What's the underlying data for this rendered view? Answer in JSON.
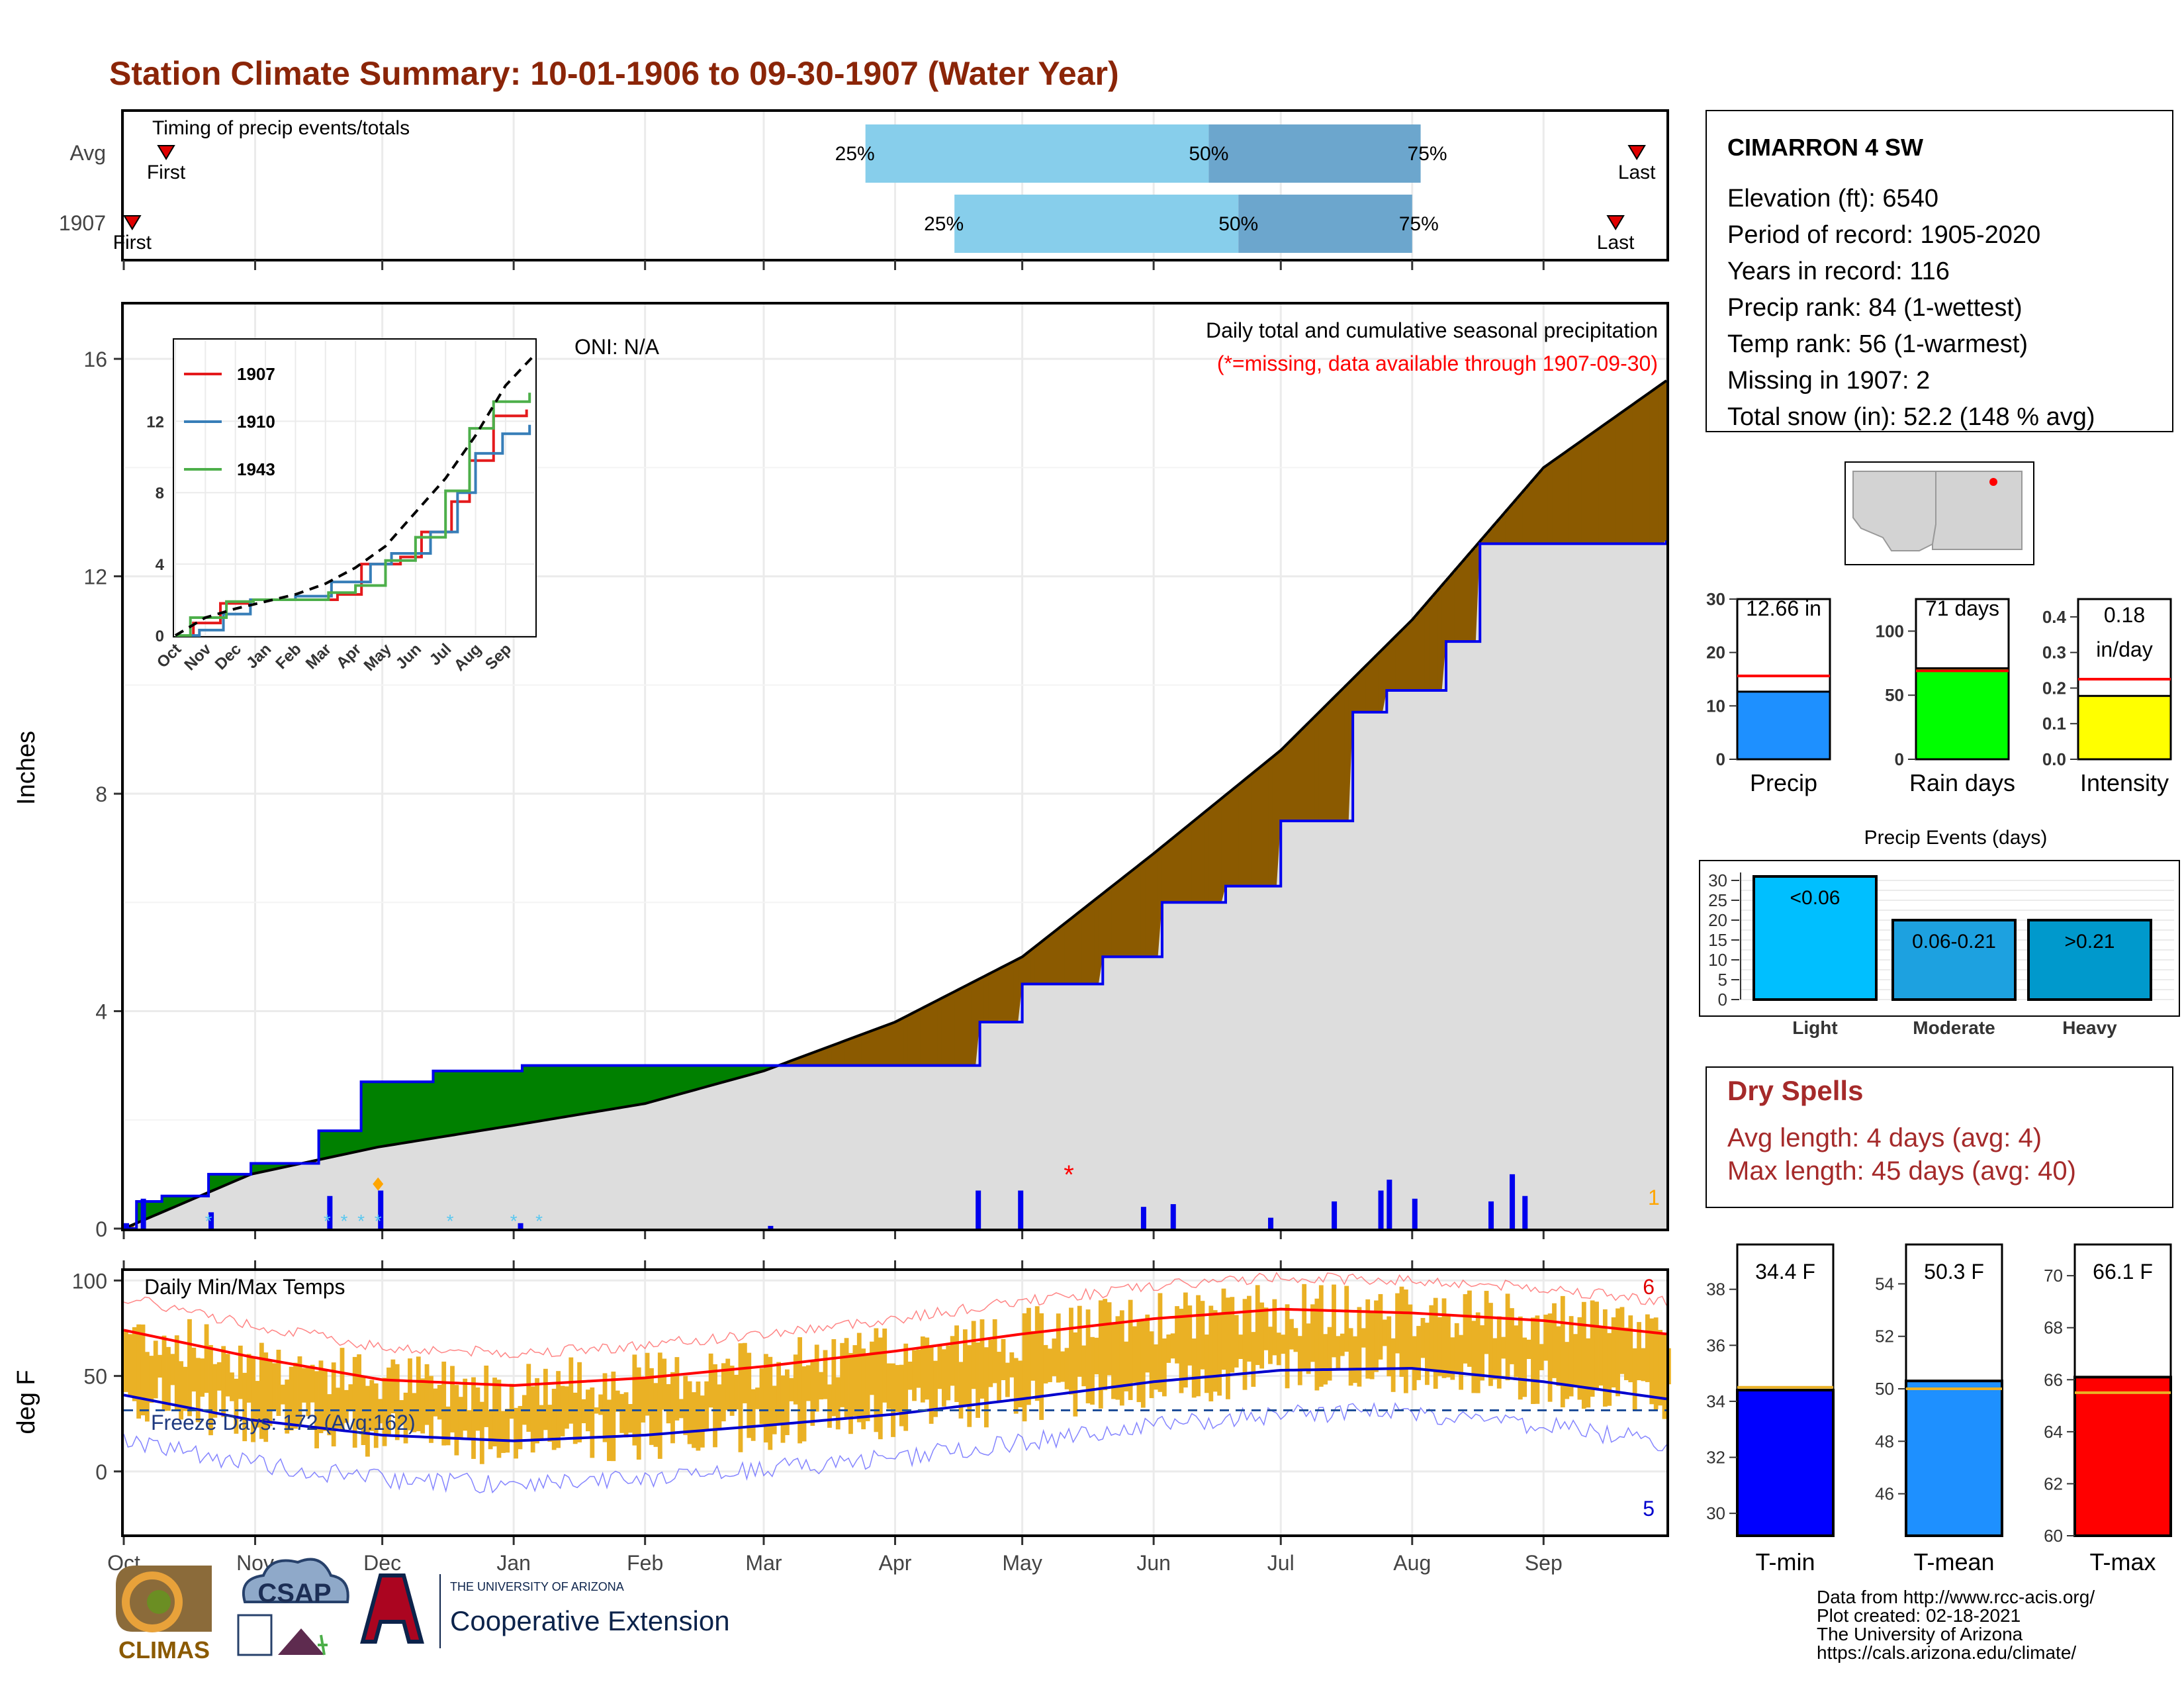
{
  "colors": {
    "title": "#8B2508",
    "cumulative_fill": "#8B5A00",
    "cumulative_gap_green": "#008000",
    "avg_area": "#DDDDDD",
    "precip_bar": "#0000EE",
    "timing_light": "#87CEEB",
    "timing_dark": "#6CA6CD",
    "temp_bar": "#EAB125",
    "tmax_line": "#FF0000",
    "tmin_line": "#0000CD",
    "dry_spell_text": "#A52A2A",
    "precip_box": "#1E90FF",
    "raindays_box": "#00FF00",
    "intensity_box": "#FFFF00",
    "events_light": "#00BFFF",
    "events_moderate": "#1DA1E0",
    "events_heavy": "#0099CC",
    "tmin_box": "#0000FF",
    "tmean_box": "#1E90FF",
    "tmax_box": "#FF0000",
    "inset_1907": "#E41A1C",
    "inset_1910": "#377EB8",
    "inset_1943": "#4DAF4A"
  },
  "header": {
    "title": "Station Climate Summary: 10-01-1906 to 09-30-1907 (Water Year)"
  },
  "month_labels": [
    "Oct",
    "Nov",
    "Dec",
    "Jan",
    "Feb",
    "Mar",
    "Apr",
    "May",
    "Jun",
    "Jul",
    "Aug",
    "Sep"
  ],
  "timing_panel": {
    "title": "Timing of precip events/totals",
    "rows": [
      {
        "label": "Avg",
        "first_label": "First",
        "last_label": "Last",
        "first_day": 10,
        "last_day": 357,
        "p25_day": 175,
        "p50_day": 256,
        "p75_day": 306,
        "p25_label": "25%",
        "p50_label": "50%",
        "p75_label": "75%"
      },
      {
        "label": "1907",
        "first_label": "First",
        "last_label": "Last",
        "first_day": 2,
        "last_day": 352,
        "p25_day": 196,
        "p50_day": 263,
        "p75_day": 304,
        "p25_label": "25%",
        "p50_label": "50%",
        "p75_label": "75%"
      }
    ]
  },
  "precip_panel": {
    "ylabel": "Inches",
    "subtitle": "Daily total and cumulative seasonal precipitation",
    "missing_note": "(*=missing, data available through 1907-09-30)",
    "oni": "ONI: N/A",
    "corner_count": "1",
    "ylim": [
      0,
      17
    ],
    "yticks": [
      0,
      4,
      8,
      12,
      16
    ]
  },
  "inset": {
    "xticks": [
      "Oct",
      "Nov",
      "Dec",
      "Jan",
      "Feb",
      "Mar",
      "Apr",
      "May",
      "Jun",
      "Jul",
      "Aug",
      "Sep"
    ],
    "yticks": [
      0,
      4,
      8,
      12
    ],
    "legend": [
      "1907",
      "1910",
      "1943"
    ]
  },
  "temp_panel": {
    "ylabel": "deg F",
    "title": "Daily Min/Max Temps",
    "freeze_text": "Freeze Days: 172 (Avg:162)",
    "count_high": "6",
    "count_low": "5",
    "yticks": [
      0,
      50,
      100
    ],
    "ylim": [
      -33,
      105
    ]
  },
  "station": {
    "name": "CIMARRON 4 SW",
    "lines": [
      "Elevation (ft): 6540",
      "Period of record: 1905-2020",
      "Years in record: 116",
      "Precip rank: 84 (1-wettest)",
      "Temp rank: 56 (1-warmest)",
      "Missing in 1907: 2",
      "Total snow (in): 52.2 (148 % avg)"
    ]
  },
  "summary_bars": [
    {
      "label": "Precip",
      "value_text": "12.66 in",
      "value": 12.66,
      "avg": 15.6,
      "ymax": 30,
      "yticks": [
        0,
        10,
        20,
        30
      ]
    },
    {
      "label": "Rain days",
      "value_text": "71 days",
      "value": 71,
      "avg": 69,
      "ymax": 125,
      "yticks": [
        0,
        50,
        100
      ]
    },
    {
      "label": "Intensity",
      "value_text": "0.18",
      "value_text2": "in/day",
      "value": 0.178,
      "avg": 0.225,
      "ymax": 0.45,
      "yticks": [
        0.0,
        0.1,
        0.2,
        0.3,
        0.4
      ]
    }
  ],
  "events": {
    "title": "Precip Events (days)",
    "yticks": [
      0,
      5,
      10,
      15,
      20,
      25,
      30
    ],
    "categories": [
      "Light",
      "Moderate",
      "Heavy"
    ],
    "bin_labels": [
      "<0.06",
      "0.06-0.21",
      ">0.21"
    ],
    "values": [
      31,
      20,
      20
    ]
  },
  "dry_spells": {
    "title": "Dry Spells",
    "avg_line": "Avg length: 4 days (avg: 4)",
    "max_line": "Max length: 45 days (avg: 40)"
  },
  "temp_summary": [
    {
      "label": "T-min",
      "value_text": "34.4 F",
      "value": 34.4,
      "avg": 34.5,
      "ylim": [
        29.2,
        39.6
      ],
      "yticks": [
        30,
        32,
        34,
        36,
        38
      ]
    },
    {
      "label": "T-mean",
      "value_text": "50.3 F",
      "value": 50.3,
      "avg": 50.0,
      "ylim": [
        44.4,
        55.5
      ],
      "yticks": [
        46,
        48,
        50,
        52,
        54
      ]
    },
    {
      "label": "T-max",
      "value_text": "66.1 F",
      "value": 66.1,
      "avg": 65.5,
      "ylim": [
        60,
        71.2
      ],
      "yticks": [
        60,
        62,
        64,
        66,
        68,
        70
      ]
    }
  ],
  "credits": [
    "Data from http://www.rcc-acis.org/",
    "Plot created: 02-18-2021",
    "The University of Arizona",
    "https://cals.arizona.edu/climate/"
  ],
  "logos": {
    "climas": "CLIMAS",
    "csap": "CSAP",
    "ua_small": "THE UNIVERSITY OF ARIZONA",
    "coop": "Cooperative Extension"
  },
  "chart_data": [
    {
      "type": "area",
      "title": "Daily total and cumulative seasonal precipitation",
      "ylabel": "Inches",
      "ylim": [
        0,
        17
      ],
      "cumulative_avg": {
        "x_day": [
          0,
          30,
          60,
          92,
          123,
          151,
          182,
          212,
          243,
          273,
          304,
          335,
          364
        ],
        "y": [
          0.0,
          1.0,
          1.5,
          1.9,
          2.3,
          2.9,
          3.8,
          5.0,
          6.9,
          8.8,
          11.2,
          14.0,
          15.6
        ]
      },
      "cumulative_1907": {
        "x_day": [
          0,
          3,
          9,
          20,
          30,
          46,
          56,
          73,
          94,
          150,
          187,
          202,
          212,
          231,
          245,
          260,
          273,
          290,
          298,
          312,
          320,
          364
        ],
        "y": [
          0.0,
          0.5,
          0.6,
          1.0,
          1.2,
          1.8,
          2.7,
          2.9,
          3.0,
          3.0,
          3.0,
          3.8,
          4.5,
          5.0,
          6.0,
          6.3,
          7.5,
          9.5,
          9.9,
          10.8,
          12.6,
          12.66
        ]
      },
      "daily_precip": [
        {
          "day": 0,
          "value": 0.1
        },
        {
          "day": 4,
          "value": 0.55
        },
        {
          "day": 20,
          "value": 0.3
        },
        {
          "day": 48,
          "value": 0.6
        },
        {
          "day": 60,
          "value": 0.7
        },
        {
          "day": 93,
          "value": 0.1
        },
        {
          "day": 152,
          "value": 0.05
        },
        {
          "day": 201,
          "value": 0.7
        },
        {
          "day": 211,
          "value": 0.7
        },
        {
          "day": 240,
          "value": 0.4
        },
        {
          "day": 247,
          "value": 0.45
        },
        {
          "day": 270,
          "value": 0.2
        },
        {
          "day": 285,
          "value": 0.5
        },
        {
          "day": 296,
          "value": 0.7
        },
        {
          "day": 298,
          "value": 0.9
        },
        {
          "day": 304,
          "value": 0.55
        },
        {
          "day": 322,
          "value": 0.5
        },
        {
          "day": 327,
          "value": 1.0
        },
        {
          "day": 330,
          "value": 0.6
        }
      ],
      "missing_day": 223
    },
    {
      "type": "line",
      "title": "Daily Min/Max Temps",
      "ylabel": "deg F",
      "ylim": [
        -33,
        105
      ],
      "avg_tmax": {
        "x_day": [
          0,
          30,
          61,
          92,
          123,
          151,
          182,
          212,
          243,
          273,
          304,
          335,
          364
        ],
        "y": [
          74,
          60,
          48,
          45,
          49,
          55,
          63,
          72,
          80,
          85,
          83,
          79,
          72
        ]
      },
      "avg_tmin": {
        "x_day": [
          0,
          30,
          61,
          92,
          123,
          151,
          182,
          212,
          243,
          273,
          304,
          335,
          364
        ],
        "y": [
          40,
          27,
          19,
          16,
          19,
          24,
          30,
          38,
          47,
          53,
          54,
          47,
          38
        ]
      },
      "freeze_line": 32
    },
    {
      "type": "line",
      "title": "",
      "months": [
        "Oct",
        "Nov",
        "Dec",
        "Jan",
        "Feb",
        "Mar",
        "Apr",
        "May",
        "Jun",
        "Jul",
        "Aug",
        "Sep"
      ],
      "ylim": [
        0,
        16.5
      ],
      "series": [
        {
          "name": "1907",
          "x_month": [
            0,
            0.6,
            1.5,
            2.5,
            4,
            5.4,
            6.2,
            7.5,
            8.2,
            9.2,
            9.8,
            10.6,
            11.7
          ],
          "y": [
            0,
            0.7,
            1.8,
            2.0,
            2.0,
            2.3,
            4.0,
            4.4,
            5.8,
            7.5,
            9.8,
            12.3,
            12.66
          ]
        },
        {
          "name": "1910",
          "x_month": [
            0,
            0.8,
            1.6,
            2.5,
            4,
            5.2,
            6.5,
            7.2,
            8.5,
            9.4,
            10.0,
            10.9,
            11.8
          ],
          "y": [
            0,
            0.3,
            1.2,
            2.0,
            2.2,
            3.0,
            4.0,
            4.6,
            5.8,
            8.0,
            10.2,
            11.3,
            11.8
          ]
        },
        {
          "name": "1943",
          "x_month": [
            0,
            0.5,
            1.7,
            2.6,
            4.2,
            5.1,
            6.0,
            7.0,
            8.0,
            9.0,
            9.8,
            10.6,
            11.8
          ],
          "y": [
            0,
            1.0,
            1.9,
            2.0,
            2.0,
            2.4,
            2.8,
            4.2,
            5.5,
            8.1,
            11.6,
            13.1,
            13.6
          ]
        },
        {
          "name": "avg",
          "x_month": [
            0,
            1,
            2,
            3,
            4,
            5,
            6,
            7,
            8,
            9,
            10,
            11,
            11.9
          ],
          "y": [
            0,
            1.0,
            1.5,
            1.9,
            2.3,
            2.9,
            3.8,
            5.0,
            6.9,
            8.8,
            11.2,
            14.0,
            15.6
          ]
        }
      ]
    },
    {
      "type": "bar",
      "title": "Precip Events (days)",
      "categories": [
        "Light",
        "Moderate",
        "Heavy"
      ],
      "values": [
        31,
        20,
        20
      ]
    }
  ]
}
